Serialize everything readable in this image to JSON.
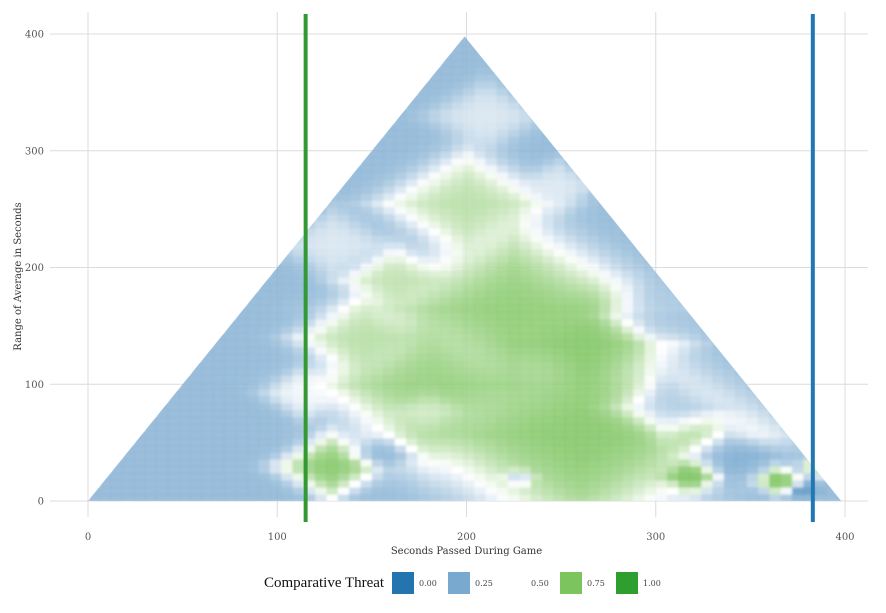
{
  "chart_data": {
    "type": "heatmap",
    "title": "",
    "xlabel": "Seconds Passed During Game",
    "ylabel": "Range of Average in Seconds",
    "xlim": [
      0,
      400
    ],
    "ylim": [
      0,
      400
    ],
    "x_ticks": [
      0,
      100,
      200,
      300,
      400
    ],
    "y_ticks": [
      0,
      100,
      200,
      300,
      400
    ],
    "grid": true,
    "domain_shape": "triangle",
    "domain_x_range": [
      0,
      398
    ],
    "peak": {
      "x": 199,
      "y": 398
    },
    "vertical_lines": [
      {
        "x": 115,
        "color": "#339933"
      },
      {
        "x": 383,
        "color": "#1f77b4"
      }
    ],
    "legend": {
      "title": "Comparative Threat",
      "placement": "bottom",
      "entries": [
        {
          "label": "0.00",
          "color": "#2474b0"
        },
        {
          "label": "0.25",
          "color": "#79a9cf"
        },
        {
          "label": "0.50",
          "color": "#ffffff"
        },
        {
          "label": "0.75",
          "color": "#7cc45e"
        },
        {
          "label": "1.00",
          "color": "#2e9e2e"
        }
      ]
    },
    "heat_regions": [
      {
        "x": 260,
        "y": 58,
        "radius": 95,
        "value": 0.82
      },
      {
        "x": 225,
        "y": 165,
        "radius": 75,
        "value": 0.8
      },
      {
        "x": 180,
        "y": 100,
        "radius": 60,
        "value": 0.78
      },
      {
        "x": 265,
        "y": 135,
        "radius": 45,
        "value": 0.8
      },
      {
        "x": 200,
        "y": 255,
        "radius": 45,
        "value": 0.7
      },
      {
        "x": 145,
        "y": 140,
        "radius": 35,
        "value": 0.7
      },
      {
        "x": 128,
        "y": 30,
        "radius": 28,
        "value": 0.82
      },
      {
        "x": 162,
        "y": 190,
        "radius": 28,
        "value": 0.68
      },
      {
        "x": 318,
        "y": 22,
        "radius": 16,
        "value": 0.86
      },
      {
        "x": 365,
        "y": 18,
        "radius": 13,
        "value": 0.86
      },
      {
        "x": 385,
        "y": 30,
        "radius": 10,
        "value": 0.72
      },
      {
        "x": 180,
        "y": 78,
        "radius": 20,
        "value": 0.5
      },
      {
        "x": 210,
        "y": 330,
        "radius": 30,
        "value": 0.45
      },
      {
        "x": 248,
        "y": 270,
        "radius": 22,
        "value": 0.45
      },
      {
        "x": 130,
        "y": 220,
        "radius": 30,
        "value": 0.45
      },
      {
        "x": 115,
        "y": 92,
        "radius": 22,
        "value": 0.5
      },
      {
        "x": 156,
        "y": 40,
        "radius": 17,
        "value": 0.25
      },
      {
        "x": 228,
        "y": 20,
        "radius": 9,
        "value": 0.25
      },
      {
        "x": 300,
        "y": 160,
        "radius": 32,
        "value": 0.3
      },
      {
        "x": 305,
        "y": 80,
        "radius": 30,
        "value": 0.22
      },
      {
        "x": 340,
        "y": 40,
        "radius": 26,
        "value": 0.2
      },
      {
        "x": 378,
        "y": 10,
        "radius": 8,
        "value": 0.12
      }
    ]
  }
}
